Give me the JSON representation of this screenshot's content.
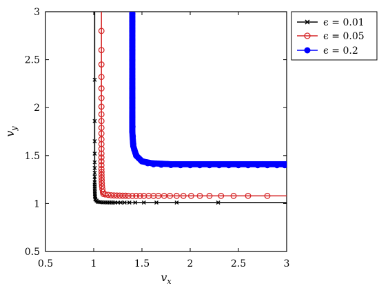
{
  "chart_data": {
    "type": "line",
    "xlabel": "v",
    "xlabel_sub": "x",
    "ylabel": "v",
    "ylabel_sub": "y",
    "xlim": [
      0.5,
      3
    ],
    "ylim": [
      0.5,
      3
    ],
    "xticks": [
      "0.5",
      "1",
      "1.5",
      "2",
      "2.5",
      "3"
    ],
    "yticks": [
      "0.5",
      "1",
      "1.5",
      "2",
      "2.5",
      "3"
    ],
    "grid": false,
    "legend_position": "top-right",
    "series": [
      {
        "name": "ϵ = 0.01",
        "color": "#000000",
        "marker": "x",
        "line": [
          [
            1.01,
            3.0
          ],
          [
            1.01,
            1.06
          ],
          [
            1.012,
            1.032
          ],
          [
            1.02,
            1.02
          ],
          [
            1.06,
            1.012
          ],
          [
            3.0,
            1.01
          ]
        ],
        "markers": [
          [
            1.01,
            2.29
          ],
          [
            1.01,
            1.86
          ],
          [
            1.01,
            1.65
          ],
          [
            1.01,
            1.52
          ],
          [
            1.01,
            1.43
          ],
          [
            1.01,
            1.37
          ],
          [
            1.01,
            1.32
          ],
          [
            1.01,
            1.28
          ],
          [
            1.01,
            1.25
          ],
          [
            1.01,
            1.22
          ],
          [
            1.01,
            1.2
          ],
          [
            1.011,
            1.18
          ],
          [
            1.011,
            1.16
          ],
          [
            1.011,
            1.14
          ],
          [
            1.012,
            1.12
          ],
          [
            1.012,
            1.1
          ],
          [
            1.013,
            1.08
          ],
          [
            1.014,
            1.065
          ],
          [
            1.016,
            1.05
          ],
          [
            1.02,
            1.04
          ],
          [
            1.03,
            1.03
          ],
          [
            1.04,
            1.02
          ],
          [
            1.05,
            1.016
          ],
          [
            1.065,
            1.014
          ],
          [
            1.08,
            1.013
          ],
          [
            1.1,
            1.012
          ],
          [
            1.12,
            1.012
          ],
          [
            1.14,
            1.011
          ],
          [
            1.16,
            1.011
          ],
          [
            1.18,
            1.011
          ],
          [
            1.2,
            1.01
          ],
          [
            1.22,
            1.01
          ],
          [
            1.25,
            1.01
          ],
          [
            1.28,
            1.01
          ],
          [
            1.32,
            1.01
          ],
          [
            1.37,
            1.01
          ],
          [
            1.43,
            1.01
          ],
          [
            1.52,
            1.01
          ],
          [
            1.65,
            1.01
          ],
          [
            1.86,
            1.01
          ],
          [
            2.29,
            1.01
          ]
        ]
      },
      {
        "name": "ϵ = 0.05",
        "color": "#d62728",
        "marker": "circle-open",
        "line": [
          [
            1.08,
            3.0
          ],
          [
            1.08,
            1.15
          ],
          [
            1.085,
            1.1
          ],
          [
            1.1,
            1.085
          ],
          [
            1.15,
            1.08
          ],
          [
            3.0,
            1.08
          ]
        ],
        "markers": [
          [
            1.08,
            2.8
          ],
          [
            1.08,
            2.6
          ],
          [
            1.08,
            2.45
          ],
          [
            1.08,
            2.32
          ],
          [
            1.08,
            2.2
          ],
          [
            1.08,
            2.1
          ],
          [
            1.08,
            2.01
          ],
          [
            1.08,
            1.93
          ],
          [
            1.08,
            1.86
          ],
          [
            1.08,
            1.79
          ],
          [
            1.08,
            1.73
          ],
          [
            1.08,
            1.67
          ],
          [
            1.08,
            1.62
          ],
          [
            1.08,
            1.57
          ],
          [
            1.08,
            1.52
          ],
          [
            1.08,
            1.48
          ],
          [
            1.08,
            1.44
          ],
          [
            1.08,
            1.4
          ],
          [
            1.08,
            1.36
          ],
          [
            1.081,
            1.33
          ],
          [
            1.081,
            1.3
          ],
          [
            1.082,
            1.27
          ],
          [
            1.083,
            1.24
          ],
          [
            1.084,
            1.21
          ],
          [
            1.086,
            1.18
          ],
          [
            1.09,
            1.15
          ],
          [
            1.095,
            1.12
          ],
          [
            1.1,
            1.1
          ],
          [
            1.12,
            1.095
          ],
          [
            1.15,
            1.09
          ],
          [
            1.18,
            1.086
          ],
          [
            1.21,
            1.084
          ],
          [
            1.24,
            1.083
          ],
          [
            1.27,
            1.082
          ],
          [
            1.3,
            1.081
          ],
          [
            1.33,
            1.081
          ],
          [
            1.36,
            1.08
          ],
          [
            1.4,
            1.08
          ],
          [
            1.44,
            1.08
          ],
          [
            1.48,
            1.08
          ],
          [
            1.52,
            1.08
          ],
          [
            1.57,
            1.08
          ],
          [
            1.62,
            1.08
          ],
          [
            1.67,
            1.08
          ],
          [
            1.73,
            1.08
          ],
          [
            1.79,
            1.08
          ],
          [
            1.86,
            1.08
          ],
          [
            1.93,
            1.08
          ],
          [
            2.01,
            1.08
          ],
          [
            2.1,
            1.08
          ],
          [
            2.2,
            1.08
          ],
          [
            2.32,
            1.08
          ],
          [
            2.45,
            1.08
          ],
          [
            2.6,
            1.08
          ],
          [
            2.8,
            1.08
          ]
        ]
      },
      {
        "name": "ϵ = 0.2",
        "color": "#0000ff",
        "marker": "circle-filled",
        "line": [
          [
            1.4,
            2.98
          ],
          [
            1.4,
            1.75
          ],
          [
            1.41,
            1.6
          ],
          [
            1.44,
            1.5
          ],
          [
            1.5,
            1.44
          ],
          [
            1.6,
            1.42
          ],
          [
            1.8,
            1.41
          ],
          [
            3.0,
            1.41
          ]
        ],
        "markers": [
          [
            1.4,
            2.98
          ],
          [
            1.4,
            2.9
          ],
          [
            1.4,
            2.8
          ],
          [
            1.4,
            2.7
          ],
          [
            1.4,
            2.6
          ],
          [
            1.4,
            2.5
          ],
          [
            1.4,
            2.4
          ],
          [
            1.4,
            2.3
          ],
          [
            1.4,
            2.2
          ],
          [
            1.4,
            2.1
          ],
          [
            1.4,
            2.0
          ],
          [
            1.4,
            1.9
          ],
          [
            1.402,
            1.8
          ],
          [
            1.405,
            1.7
          ],
          [
            1.41,
            1.62
          ],
          [
            1.42,
            1.56
          ],
          [
            1.44,
            1.51
          ],
          [
            1.47,
            1.47
          ],
          [
            1.51,
            1.44
          ],
          [
            1.56,
            1.42
          ],
          [
            1.62,
            1.41
          ],
          [
            1.7,
            1.405
          ],
          [
            1.8,
            1.402
          ],
          [
            1.9,
            1.4
          ],
          [
            2.0,
            1.4
          ],
          [
            2.1,
            1.4
          ],
          [
            2.2,
            1.4
          ],
          [
            2.3,
            1.4
          ],
          [
            2.4,
            1.4
          ],
          [
            2.5,
            1.4
          ],
          [
            2.6,
            1.4
          ],
          [
            2.7,
            1.4
          ],
          [
            2.8,
            1.4
          ],
          [
            2.9,
            1.4
          ],
          [
            2.98,
            1.4
          ]
        ]
      }
    ]
  }
}
